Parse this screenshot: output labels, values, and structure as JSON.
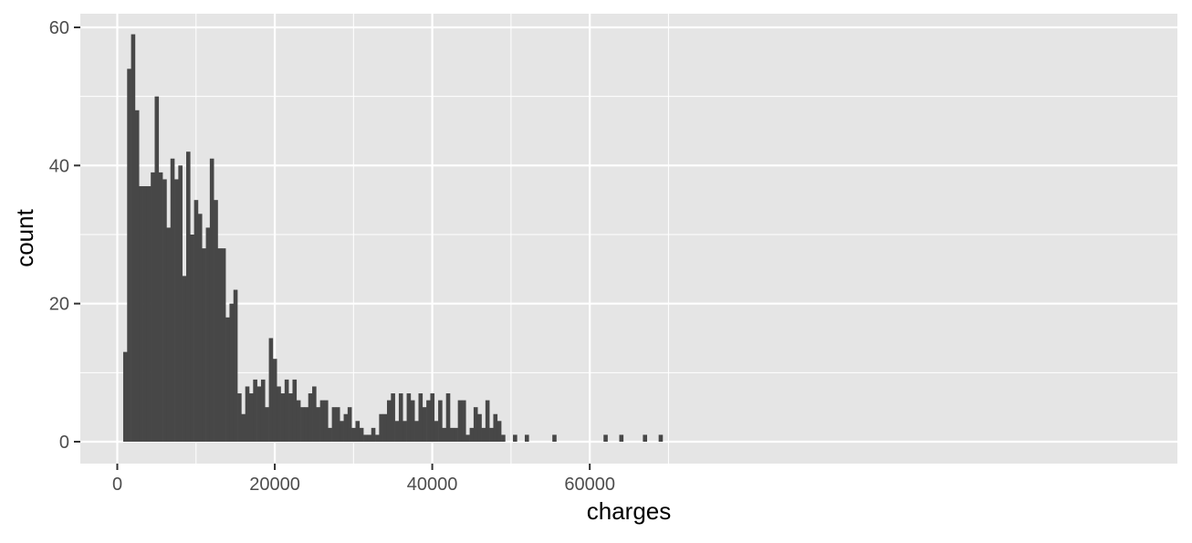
{
  "chart_data": {
    "type": "bar",
    "subtype": "histogram",
    "title": "",
    "xlabel": "charges",
    "ylabel": "count",
    "xlim": [
      -4000,
      67800
    ],
    "ylim": [
      -3,
      62
    ],
    "x_ticks": [
      0,
      20000,
      40000,
      60000
    ],
    "x_tick_labels": [
      "0",
      "20000",
      "40000",
      "60000"
    ],
    "y_ticks": [
      0,
      20,
      40,
      60
    ],
    "y_tick_labels": [
      "0",
      "20",
      "40",
      "60"
    ],
    "grid": true,
    "legend": "none",
    "bin_width": 500,
    "bins_start": 750,
    "bar_color": "#474747",
    "panel_color": "#e5e5e5",
    "grid_color": "#ffffff",
    "values": [
      13,
      54,
      59,
      48,
      37,
      37,
      37,
      39,
      50,
      39,
      38,
      31,
      41,
      38,
      40,
      24,
      42,
      30,
      35,
      33,
      28,
      31,
      41,
      35,
      28,
      28,
      18,
      20,
      22,
      7,
      4,
      8,
      7,
      9,
      8,
      9,
      5,
      15,
      12,
      8,
      7,
      9,
      7,
      9,
      6,
      5,
      5,
      7,
      8,
      5,
      6,
      6,
      2,
      5,
      5,
      3,
      4,
      5,
      2,
      3,
      2,
      1,
      1,
      2,
      1,
      4,
      4,
      6,
      7,
      3,
      7,
      3,
      7,
      6,
      3,
      7,
      5,
      6,
      7,
      3,
      6,
      2,
      7,
      2,
      2,
      6,
      6,
      1,
      2,
      5,
      4,
      2,
      6,
      2,
      4,
      3,
      1,
      0,
      0,
      1,
      0,
      0,
      1,
      0,
      0,
      0,
      0,
      0,
      0,
      1,
      0,
      0,
      0,
      0,
      0,
      0,
      0,
      0,
      0,
      0,
      0,
      0,
      1,
      0,
      0,
      0,
      1,
      0,
      0,
      0,
      0,
      0,
      1,
      0,
      0,
      0,
      1
    ]
  }
}
